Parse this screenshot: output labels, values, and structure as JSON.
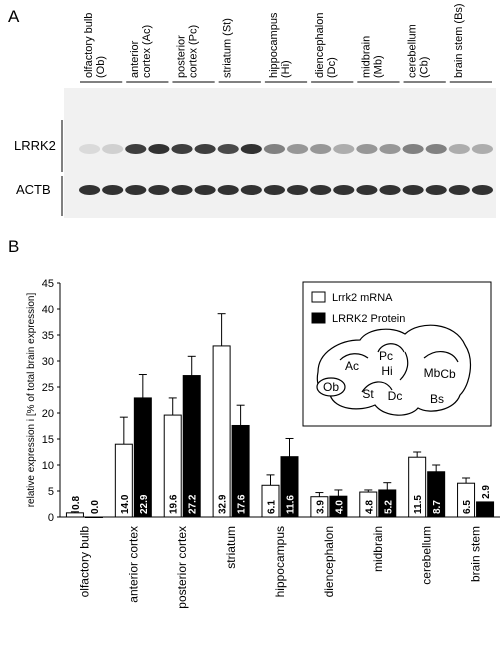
{
  "panel_a": {
    "letter": "A",
    "lanes": [
      [
        "olfactory bulb",
        "(Ob)"
      ],
      [
        "anterior",
        "cortex (Ac)"
      ],
      [
        "posterior",
        "cortex (Pc)"
      ],
      [
        "striatum (St)"
      ],
      [
        "hippocampus",
        "(Hi)"
      ],
      [
        "diencephalon",
        "(Dc)"
      ],
      [
        "midbrain",
        "(Mb)"
      ],
      [
        "cerebellum",
        "(Cb)"
      ],
      [
        "brain stem (Bs)"
      ]
    ],
    "rows": [
      "LRRK2",
      "ACTB"
    ]
  },
  "chart_data": {
    "type": "bar",
    "letter": "B",
    "ylabel": "relative expression i [% of total brain expression]",
    "categories": [
      "olfactory bulb",
      "anterior cortex",
      "posterior cortex",
      "striatum",
      "hippocampus",
      "diencephalon",
      "midbrain",
      "cerebellum",
      "brain stem"
    ],
    "series": [
      {
        "name": "Lrrk2 mRNA",
        "color": "#ffffff",
        "values": [
          0.8,
          14.0,
          19.6,
          32.9,
          6.1,
          3.9,
          4.8,
          11.5,
          6.5
        ],
        "value_labels": [
          "0.8",
          "14.0",
          "19.6",
          "32.9",
          "6.1",
          "3.9",
          "4.8",
          "11.5",
          "6.5"
        ],
        "errors": [
          0.2,
          5.2,
          3.3,
          6.2,
          2.0,
          0.8,
          0.4,
          1.0,
          1.0
        ]
      },
      {
        "name": "LRRK2 Protein",
        "color": "#000000",
        "values": [
          0.0,
          22.9,
          27.2,
          17.6,
          11.6,
          4.0,
          5.2,
          8.7,
          2.9
        ],
        "value_labels": [
          "0.0",
          "22.9",
          "27.2",
          "17.6",
          "11.6",
          "4.0",
          "5.2",
          "8.7",
          "2.9"
        ],
        "errors": [
          0.0,
          4.5,
          3.7,
          3.9,
          3.5,
          1.2,
          1.4,
          1.3,
          0.0
        ]
      }
    ],
    "ylim": [
      0,
      45
    ],
    "yticks": [
      0,
      5,
      10,
      15,
      20,
      25,
      30,
      35,
      40,
      45
    ],
    "diagram_labels": [
      "Ob",
      "Ac",
      "Pc",
      "Hi",
      "St",
      "Dc",
      "Mb",
      "Cb",
      "Bs"
    ]
  }
}
